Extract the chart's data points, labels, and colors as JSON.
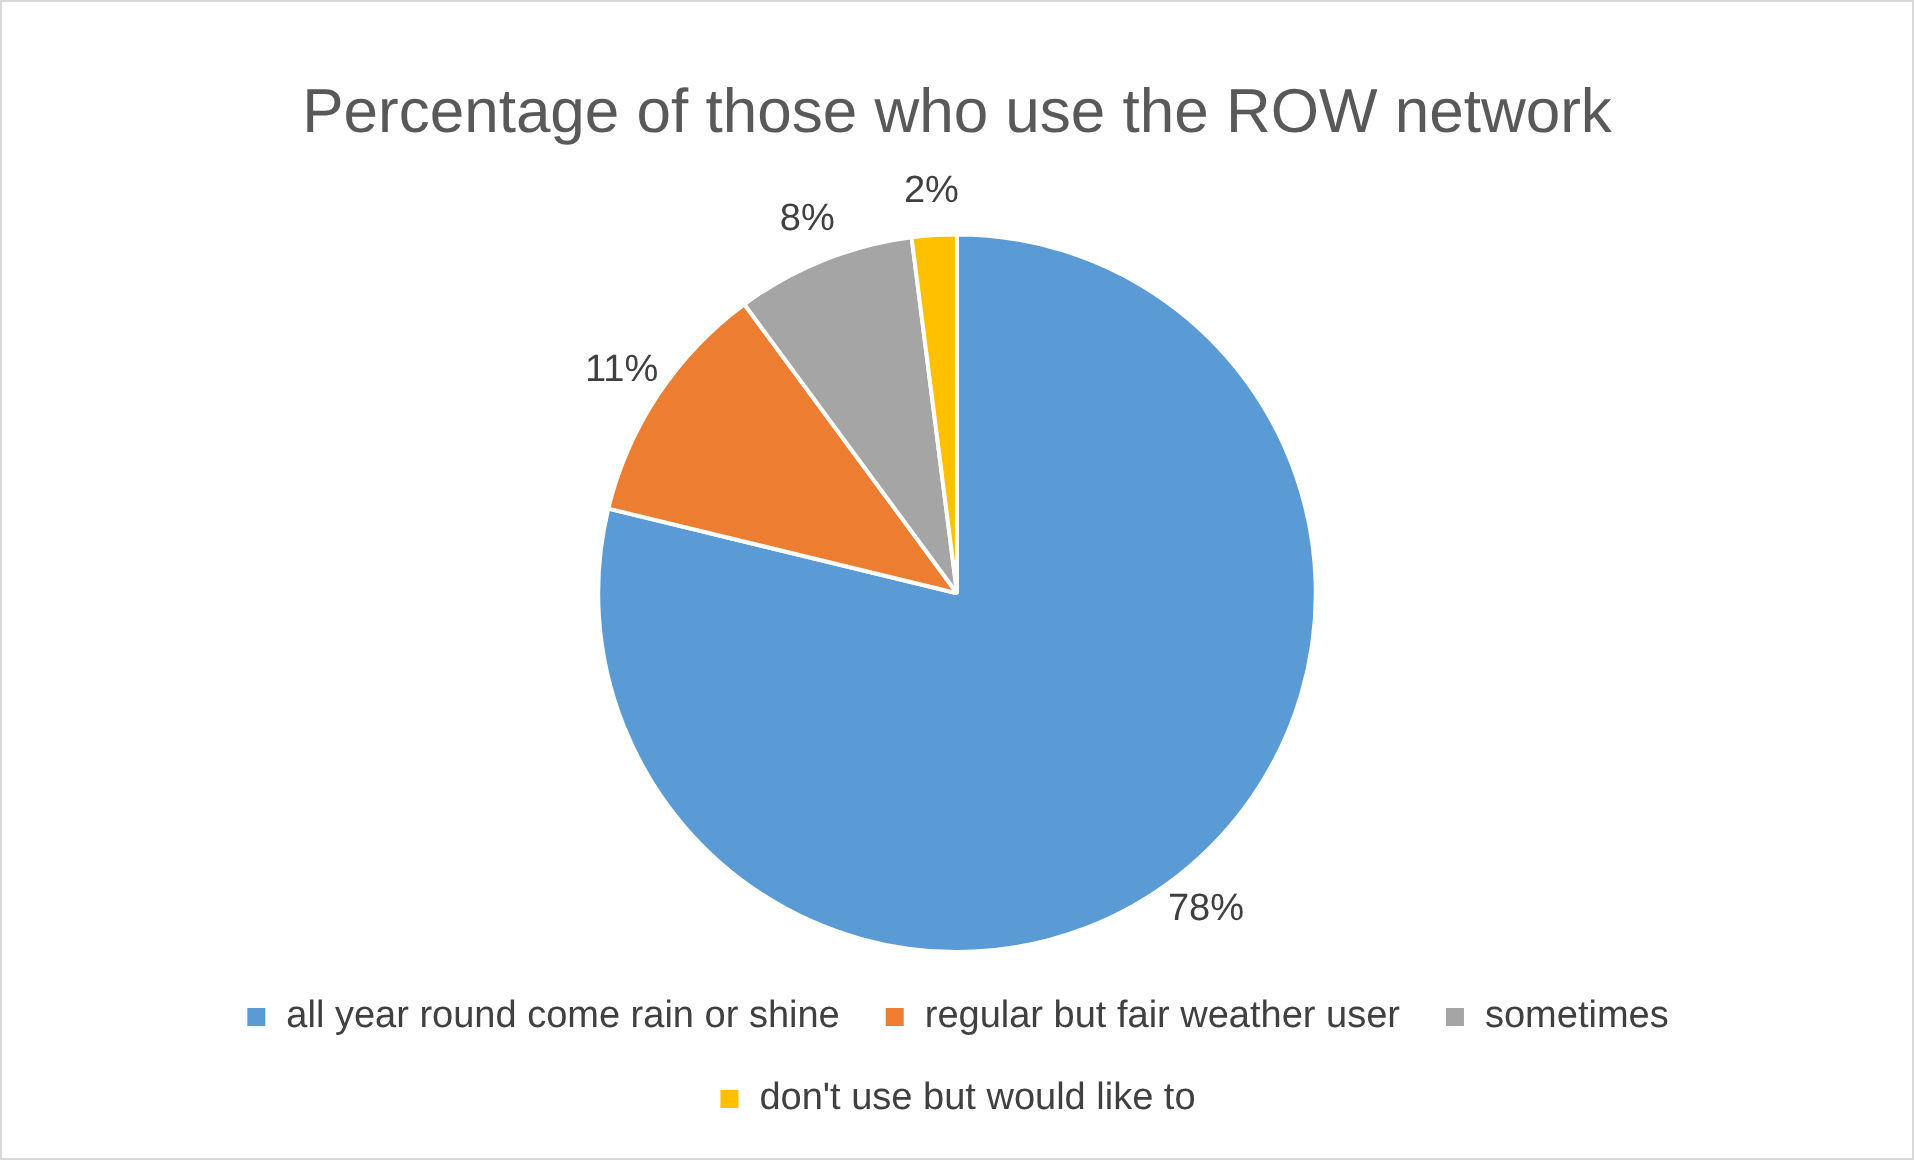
{
  "chart_data": {
    "type": "pie",
    "title": "Percentage of those who use the ROW network",
    "categories": [
      "all year round come rain or shine",
      "regular but fair weather user",
      "sometimes",
      "don't use but would like to"
    ],
    "values": [
      78,
      11,
      8,
      2
    ],
    "colors": [
      "#5b9bd5",
      "#ed7d31",
      "#a5a5a5",
      "#ffc000"
    ],
    "value_labels": [
      "78%",
      "11%",
      "8%",
      "2%"
    ],
    "legend": "bottom"
  }
}
